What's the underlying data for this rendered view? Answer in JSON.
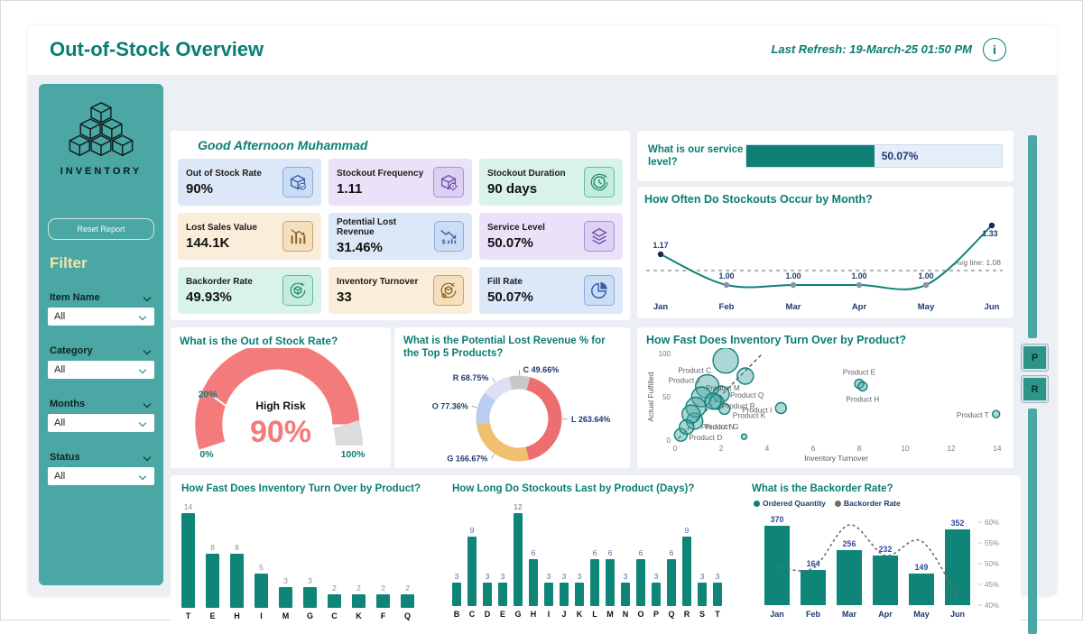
{
  "header": {
    "title": "Out-of-Stock Overview",
    "last_refresh": "Last Refresh: 19-March-25 01:50 PM",
    "info_icon": "i"
  },
  "sidebar": {
    "logo_text": "INVENTORY",
    "reset_button": "Reset Report",
    "filter_title": "Filter",
    "filters": [
      {
        "label": "Item Name",
        "value": "All"
      },
      {
        "label": "Category",
        "value": "All"
      },
      {
        "label": "Months",
        "value": "All"
      },
      {
        "label": "Status",
        "value": "All"
      }
    ]
  },
  "greeting": "Good Afternoon Muhammad",
  "kpis": [
    {
      "label": "Out of Stock Rate",
      "value": "90%",
      "theme": "blue",
      "icon": "box-check-icon"
    },
    {
      "label": "Stockout Frequency",
      "value": "1.11",
      "theme": "purple",
      "icon": "box-gear-icon"
    },
    {
      "label": "Stockout Duration",
      "value": "90 days",
      "theme": "mint",
      "icon": "clock-history-icon"
    },
    {
      "label": "Lost Sales Value",
      "value": "144.1K",
      "theme": "tan",
      "icon": "chart-down-icon"
    },
    {
      "label": "Potential Lost Revenue",
      "value": "31.46%",
      "theme": "blue",
      "icon": "revenue-down-icon"
    },
    {
      "label": "Service Level",
      "value": "50.07%",
      "theme": "purple",
      "icon": "layers-icon"
    },
    {
      "label": "Backorder Rate",
      "value": "49.93%",
      "theme": "mint",
      "icon": "box-refresh-icon"
    },
    {
      "label": "Inventory Turnover",
      "value": "33",
      "theme": "tan",
      "icon": "box-cycle-icon"
    },
    {
      "label": "Fill Rate",
      "value": "50.07%",
      "theme": "blue",
      "icon": "pie-icon"
    }
  ],
  "service_level": {
    "question": "What is our service level?",
    "value_label": "50.07%",
    "percent": 50.07
  },
  "side_buttons": [
    "P",
    "R"
  ],
  "colors": {
    "teal": "#0E8076",
    "sidebar": "#4BA7A3",
    "navy": "#1F3A6E",
    "value_blue": "#2D4B9B",
    "gauge_red": "#F47B7B",
    "bar_teal": "#0F8578",
    "gray_line": "#8a8a8a"
  },
  "chart_data": [
    {
      "id": "stockouts_by_month",
      "type": "line",
      "title": "How Often Do Stockouts Occur by Month?",
      "categories": [
        "Jan",
        "Feb",
        "Mar",
        "Apr",
        "May",
        "Jun"
      ],
      "values": [
        1.17,
        1.0,
        1.0,
        1.0,
        1.0,
        1.33
      ],
      "value_labels": [
        "1.17",
        "1.00",
        "1.00",
        "1.00",
        "1.00",
        "1.33"
      ],
      "avg_line": {
        "label": "Avg line: 1.08",
        "value": 1.08
      },
      "ylim": [
        0.95,
        1.38
      ],
      "grid": false
    },
    {
      "id": "out_of_stock_gauge",
      "type": "gauge",
      "title": "What is the Out of Stock Rate?",
      "value_pct": 90,
      "value_label": "90%",
      "risk_label": "High Risk",
      "threshold_pct": 20,
      "tick_labels": {
        "start": "0%",
        "threshold": "20%",
        "end": "100%"
      }
    },
    {
      "id": "lost_revenue_donut",
      "type": "pie",
      "title": "What is the Potential Lost Revenue % for the Top 5 Products?",
      "start_angle_deg": 15,
      "slices": [
        {
          "label": "L 263.64%",
          "value": 263.64,
          "color": "#ED6E6E"
        },
        {
          "label": "G 166.67%",
          "value": 166.67,
          "color": "#F0BF70"
        },
        {
          "label": "O 77.36%",
          "value": 77.36,
          "color": "#B9CDF0"
        },
        {
          "label": "R 68.75%",
          "value": 68.75,
          "color": "#DCDFF6"
        },
        {
          "label": "C 49.66%",
          "value": 49.66,
          "color": "#C8C8C8"
        }
      ]
    },
    {
      "id": "turnover_scatter",
      "type": "scatter",
      "title": "How Fast Does Inventory Turn Over by Product?",
      "xlabel": "Inventory Turnover",
      "ylabel": "Actual Fulfilled",
      "xlim": [
        0,
        14
      ],
      "ylim": [
        0,
        100
      ],
      "xticks": [
        0,
        2,
        4,
        6,
        8,
        10,
        12,
        14
      ],
      "yticks": [
        0,
        50,
        100
      ],
      "trend": {
        "x1": 0.15,
        "y1": 2,
        "x2": 3.8,
        "y2": 100
      },
      "points": [
        {
          "label": "Product C",
          "x": 2.2,
          "y": 92,
          "r": 14,
          "lp": [
            -16,
            14,
            "end"
          ]
        },
        {
          "label": "Product M",
          "x": 3.05,
          "y": 74,
          "r": 9,
          "lp": [
            -6,
            16,
            "end"
          ]
        },
        {
          "label": "Product J",
          "x": 1.4,
          "y": 62,
          "r": 13,
          "lp": [
            -8,
            -4,
            "end"
          ]
        },
        {
          "label": "Product Q",
          "x": 2.0,
          "y": 53,
          "r": 9,
          "lp": [
            10,
            4,
            "start"
          ]
        },
        {
          "label": "Product E",
          "x": 8.0,
          "y": 65,
          "r": 5,
          "lp": [
            0,
            -10,
            "middle"
          ]
        },
        {
          "label": "Product H",
          "x": 8.15,
          "y": 62,
          "r": 5,
          "lp": [
            0,
            17,
            "middle"
          ]
        },
        {
          "label": "Product R",
          "x": 1.8,
          "y": 44,
          "r": 8,
          "lp": [
            6,
            7,
            "start"
          ]
        },
        {
          "label": "Product K",
          "x": 2.15,
          "y": 36,
          "r": 6,
          "lp": [
            9,
            10,
            "start"
          ]
        },
        {
          "label": "Product I",
          "x": 4.6,
          "y": 37,
          "r": 6,
          "lp": [
            -10,
            5,
            "end"
          ]
        },
        {
          "label": "Product N",
          "x": 0.85,
          "y": 22,
          "r": 9,
          "lp": [
            7,
            9,
            "start"
          ]
        },
        {
          "label": "Product D",
          "x": 0.25,
          "y": 6,
          "r": 7,
          "lp": [
            9,
            6,
            "start"
          ]
        },
        {
          "label": "Product G",
          "x": 3.0,
          "y": 4,
          "r": 3,
          "lp": [
            -6,
            -8,
            "end"
          ]
        },
        {
          "label": "Product T",
          "x": 13.95,
          "y": 30,
          "r": 4,
          "lp": [
            -8,
            4,
            "end"
          ]
        },
        {
          "label": "",
          "x": 1.15,
          "y": 50,
          "r": 11
        },
        {
          "label": "",
          "x": 0.9,
          "y": 38,
          "r": 11
        },
        {
          "label": "",
          "x": 0.7,
          "y": 30,
          "r": 10
        },
        {
          "label": "",
          "x": 0.5,
          "y": 15,
          "r": 8
        },
        {
          "label": "",
          "x": 1.65,
          "y": 45,
          "r": 9
        }
      ]
    },
    {
      "id": "turnover_bars",
      "type": "bar",
      "title": "How Fast Does Inventory Turn Over by Product?",
      "categories": [
        "T",
        "E",
        "H",
        "I",
        "M",
        "G",
        "C",
        "K",
        "F",
        "Q"
      ],
      "values": [
        14,
        8,
        8,
        5,
        3,
        3,
        2,
        2,
        2,
        2
      ],
      "value_label_color": "#8a8f94"
    },
    {
      "id": "stockout_days_bars",
      "type": "bar",
      "title": "How Long Do Stockouts Last by Product (Days)?",
      "categories": [
        "B",
        "C",
        "D",
        "E",
        "G",
        "H",
        "I",
        "J",
        "K",
        "L",
        "M",
        "N",
        "O",
        "P",
        "Q",
        "R",
        "S",
        "T"
      ],
      "values": [
        3,
        9,
        3,
        3,
        12,
        6,
        3,
        3,
        3,
        6,
        6,
        3,
        6,
        3,
        6,
        9,
        3,
        3
      ],
      "value_label_color": "#5A6D9E"
    },
    {
      "id": "backorder_combo",
      "type": "combo",
      "title": "What is the Backorder Rate?",
      "legend": [
        {
          "label": "Ordered Quantity",
          "color": "#0E8076"
        },
        {
          "label": "Backorder Rate",
          "color": "#6d6d6d"
        }
      ],
      "categories": [
        "Jan",
        "Feb",
        "Mar",
        "Apr",
        "May",
        "Jun"
      ],
      "bar_values": [
        370,
        164,
        256,
        232,
        149,
        352
      ],
      "line_values_pct": [
        49.3,
        49,
        59.3,
        52,
        55.5,
        42
      ],
      "right_axis_ticks": [
        "60%",
        "55%",
        "50%",
        "45%",
        "40%"
      ],
      "right_axis_range": [
        40,
        60
      ]
    }
  ]
}
